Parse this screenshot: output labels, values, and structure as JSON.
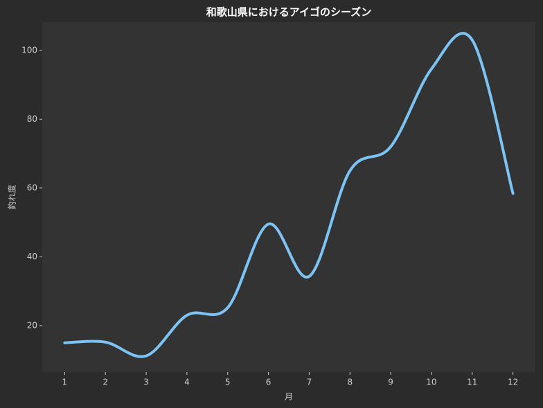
{
  "chart_data": {
    "type": "line",
    "title": "和歌山県におけるアイゴのシーズン",
    "x_label": "月",
    "y_label": "釣れ度",
    "x": [
      1,
      2,
      3,
      4,
      5,
      6,
      7,
      8,
      9,
      10,
      11,
      12
    ],
    "series": [
      {
        "color": "#7cc4f5",
        "values": [
          15.0,
          15.2,
          11.2,
          23.0,
          25.2,
          49.5,
          34.3,
          65.0,
          72.0,
          94.6,
          103.0,
          58.4
        ]
      }
    ],
    "xlim": [
      0.45,
      12.55
    ],
    "xticks": [
      1,
      2,
      3,
      4,
      5,
      6,
      7,
      8,
      9,
      10,
      11,
      12
    ],
    "ylim": [
      6.5,
      108.2
    ],
    "yticks": [
      20,
      40,
      60,
      80,
      100
    ],
    "grid": false,
    "smooth": true
  }
}
